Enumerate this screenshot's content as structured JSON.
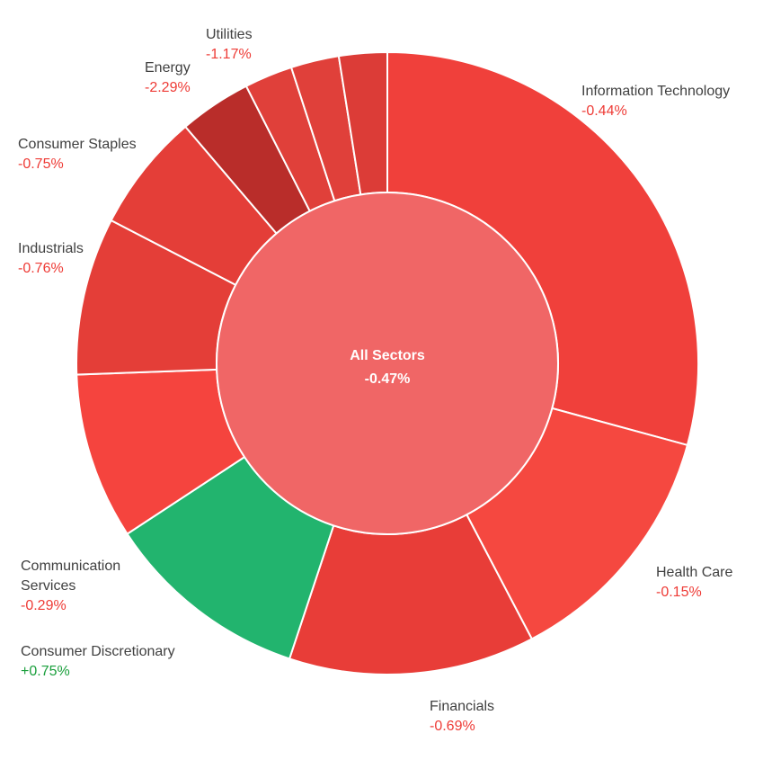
{
  "chart_data": {
    "type": "sunburst",
    "center": {
      "name": "All Sectors",
      "value_label": "-0.47%",
      "change": -0.47,
      "color": "#f06666"
    },
    "segments": [
      {
        "name": "Information Technology",
        "value_label": "-0.44%",
        "change": -0.44,
        "weight": 30.4,
        "color": "#f0403b"
      },
      {
        "name": "Health Care",
        "value_label": "-0.15%",
        "change": -0.15,
        "weight": 13.6,
        "color": "#f54840"
      },
      {
        "name": "Financials",
        "value_label": "-0.69%",
        "change": -0.69,
        "weight": 13.3,
        "color": "#e83d38"
      },
      {
        "name": "Consumer Discretionary",
        "value_label": "+0.75%",
        "change": 0.75,
        "weight": 11.1,
        "color": "#22b46e"
      },
      {
        "name": "Communication Services",
        "value_label": "-0.29%",
        "change": -0.29,
        "weight": 9.0,
        "color": "#f5443e"
      },
      {
        "name": "Industrials",
        "value_label": "-0.76%",
        "change": -0.76,
        "weight": 8.5,
        "color": "#e43e38"
      },
      {
        "name": "Consumer Staples",
        "value_label": "-0.75%",
        "change": -0.75,
        "weight": 6.4,
        "color": "#e43e38"
      },
      {
        "name": "Energy",
        "value_label": "-2.29%",
        "change": -2.29,
        "weight": 3.9,
        "color": "#b92d2a"
      },
      {
        "name": "",
        "value_label": "",
        "change": null,
        "weight": 2.6,
        "color": "#e0403a"
      },
      {
        "name": "",
        "value_label": "",
        "change": null,
        "weight": 2.6,
        "color": "#e0403a"
      },
      {
        "name": "Utilities",
        "value_label": "-1.17%",
        "change": -1.17,
        "weight": 2.6,
        "color": "#dc3c37"
      }
    ],
    "colors": {
      "negative_text": "#ee3b36",
      "positive_text": "#1a9f3c"
    }
  }
}
